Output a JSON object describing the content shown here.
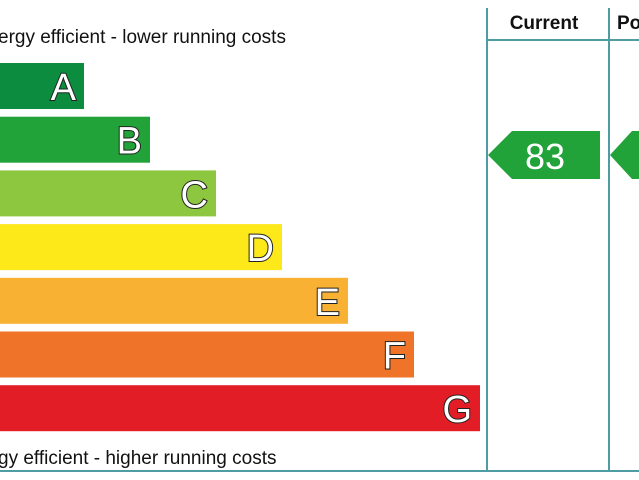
{
  "header": {
    "top_text": "ergy efficient - lower running costs",
    "bottom_text": "gy efficient - higher running costs",
    "current_heading": "Current",
    "potential_heading": "Po"
  },
  "bands": [
    {
      "letter": "A",
      "color": "#0b8c3e"
    },
    {
      "letter": "B",
      "color": "#22a33a"
    },
    {
      "letter": "C",
      "color": "#8dc63f"
    },
    {
      "letter": "D",
      "color": "#fde81a"
    },
    {
      "letter": "E",
      "color": "#f8b133"
    },
    {
      "letter": "F",
      "color": "#ef7328"
    },
    {
      "letter": "G",
      "color": "#e31d25"
    }
  ],
  "current": {
    "value": 83,
    "color": "#22a33a"
  }
}
